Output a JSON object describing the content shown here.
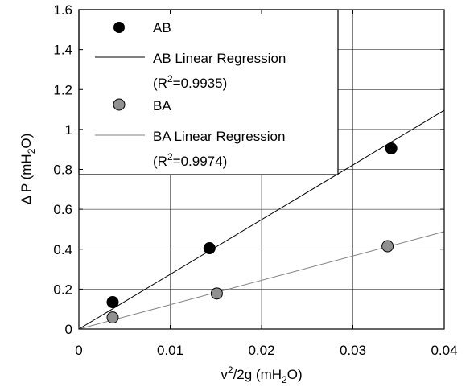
{
  "chart_data": {
    "type": "scatter",
    "xlabel": {
      "base": "v",
      "sup": "2",
      "mid": "/2g (mH",
      "sub": "2",
      "end": "O)"
    },
    "ylabel": {
      "base": "Δ P (mH",
      "sub": "2",
      "end": "O)"
    },
    "xlim": [
      0,
      0.04
    ],
    "ylim": [
      0,
      1.6
    ],
    "xticks": [
      0,
      0.01,
      0.02,
      0.03,
      0.04
    ],
    "xtick_labels": [
      "0",
      "0.01",
      "0.02",
      "0.03",
      "0.04"
    ],
    "yticks": [
      0,
      0.2,
      0.4,
      0.6,
      0.8,
      1.0,
      1.2,
      1.4,
      1.6
    ],
    "ytick_labels": [
      "0",
      "0.2",
      "0.4",
      "0.6",
      "0.8",
      "1",
      "1.2",
      "1.4",
      "1.6"
    ],
    "grid": true,
    "legend_position": "top-left",
    "series": [
      {
        "name": "AB",
        "marker": "circle",
        "color": "#000000",
        "points": [
          {
            "x": 0.0037,
            "y": 0.135
          },
          {
            "x": 0.0143,
            "y": 0.405
          },
          {
            "x": 0.0342,
            "y": 0.905
          }
        ]
      },
      {
        "name": "BA",
        "marker": "circle",
        "color": "#909090",
        "points": [
          {
            "x": 0.0037,
            "y": 0.058
          },
          {
            "x": 0.0151,
            "y": 0.178
          },
          {
            "x": 0.0338,
            "y": 0.415
          }
        ]
      }
    ],
    "regressions": [
      {
        "name": "AB Linear Regression",
        "r2_prefix": "(R",
        "r2_sup": "2",
        "r2_value": "=0.9935)",
        "color": "#000000",
        "slope": 27.4,
        "intercept": 0.0
      },
      {
        "name": "BA Linear Regression",
        "r2_prefix": "(R",
        "r2_sup": "2",
        "r2_value": "=0.9974)",
        "color": "#808080",
        "slope": 12.2,
        "intercept": 0.0
      }
    ]
  }
}
